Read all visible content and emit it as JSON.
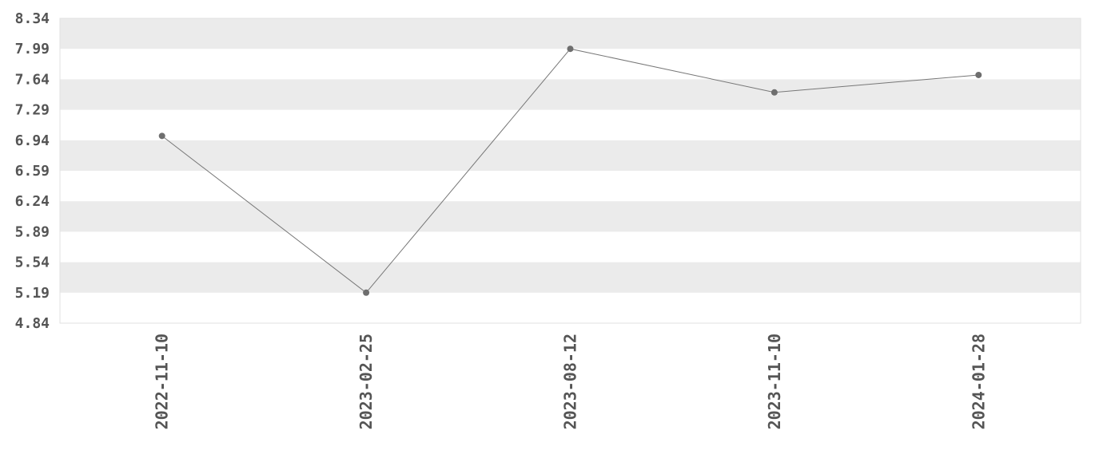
{
  "chart_data": {
    "type": "line",
    "title": "",
    "xlabel": "",
    "ylabel": "",
    "categories": [
      "2022-11-10",
      "2023-02-25",
      "2023-08-12",
      "2023-11-10",
      "2024-01-28"
    ],
    "values": [
      6.99,
      5.19,
      7.99,
      7.49,
      7.69
    ],
    "ylim": [
      4.84,
      8.34
    ],
    "yticks": [
      "4.84",
      "5.19",
      "5.54",
      "5.89",
      "6.24",
      "6.59",
      "6.94",
      "7.29",
      "7.64",
      "7.99",
      "8.34"
    ],
    "grid": "alternating horizontal bands",
    "legend": "none",
    "colors": {
      "line": "#777777",
      "marker": "#6e6e6e",
      "band": "#ebebeb",
      "text": "#555555"
    }
  }
}
